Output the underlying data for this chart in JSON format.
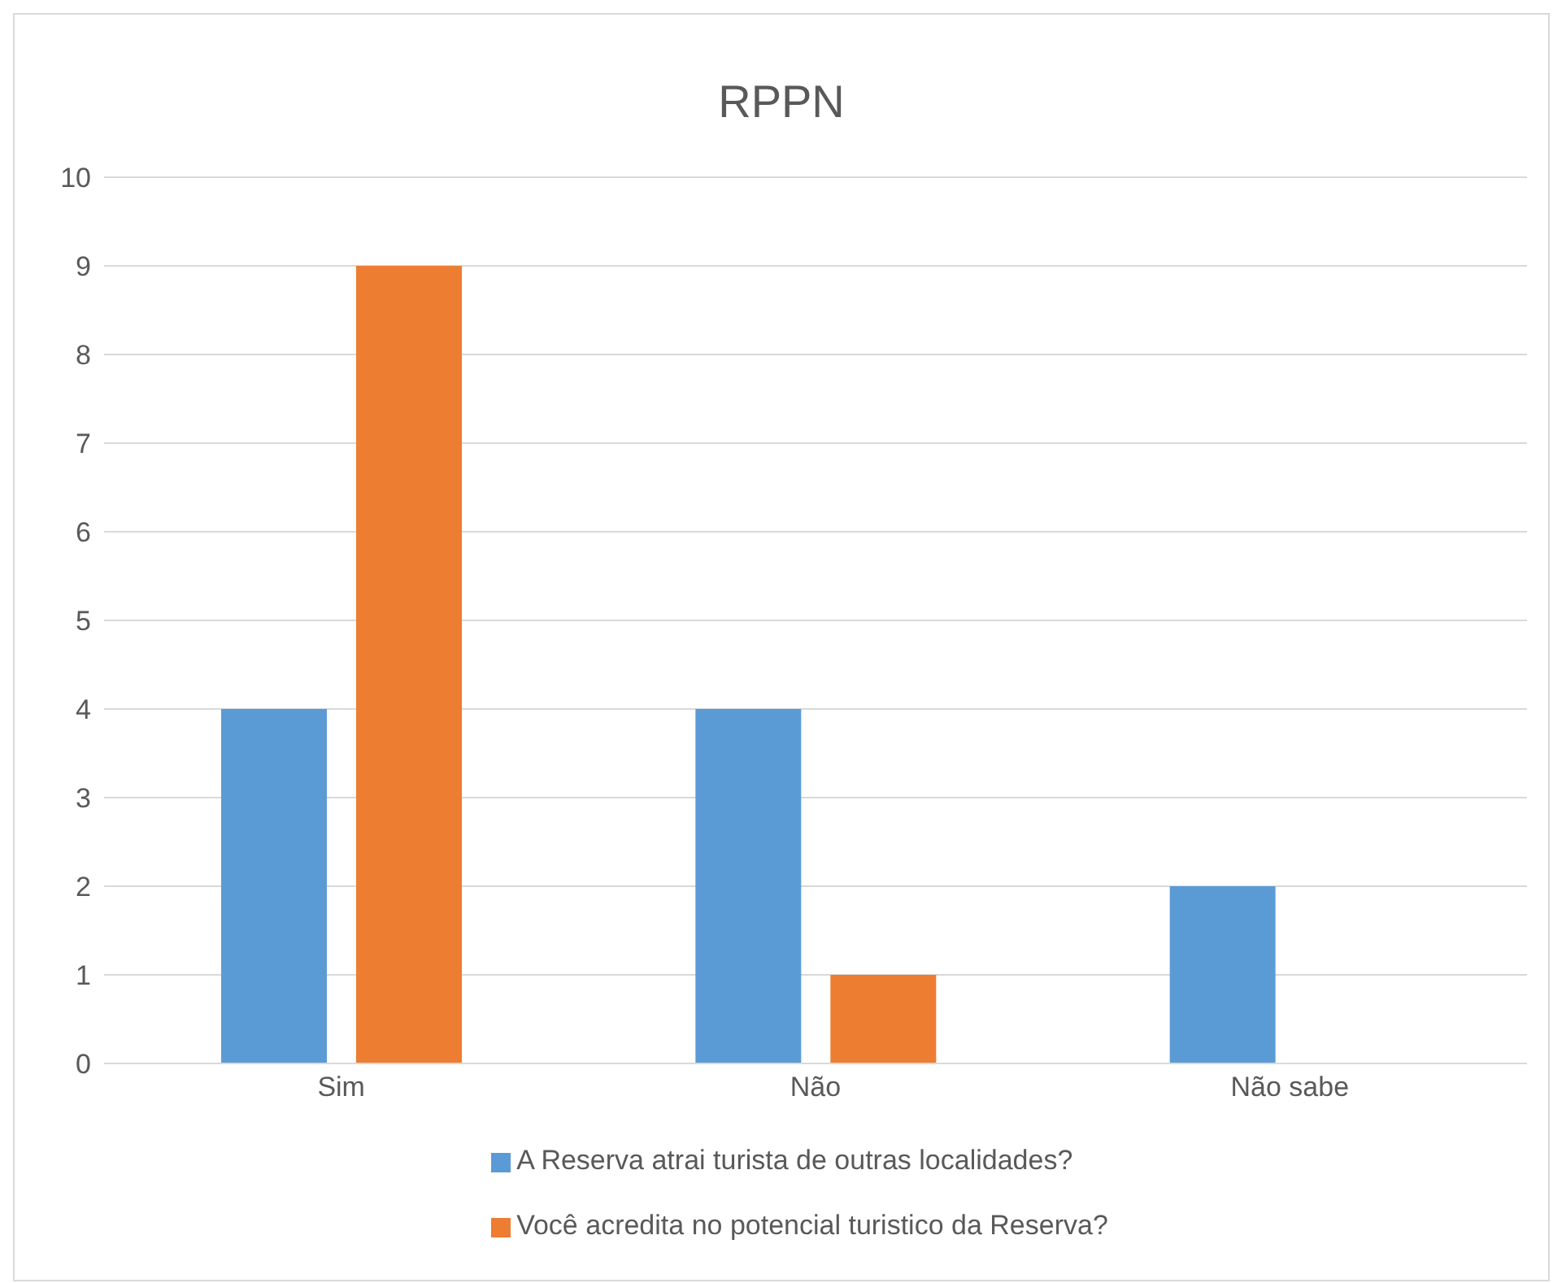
{
  "chart_data": {
    "type": "bar",
    "title": "RPPN",
    "categories": [
      "Sim",
      "Não",
      "Não sabe"
    ],
    "series": [
      {
        "name": "A Reserva atrai turista de outras localidades?",
        "color": "#5b9bd5",
        "values": [
          4,
          4,
          2
        ]
      },
      {
        "name": "Você acredita no potencial turistico da Reserva?",
        "color": "#ed7d31",
        "values": [
          9,
          1,
          0
        ]
      }
    ],
    "ylim": [
      0,
      10
    ],
    "yticks": [
      0,
      1,
      2,
      3,
      4,
      5,
      6,
      7,
      8,
      9,
      10
    ],
    "grid": "y",
    "legend": "bottom"
  }
}
